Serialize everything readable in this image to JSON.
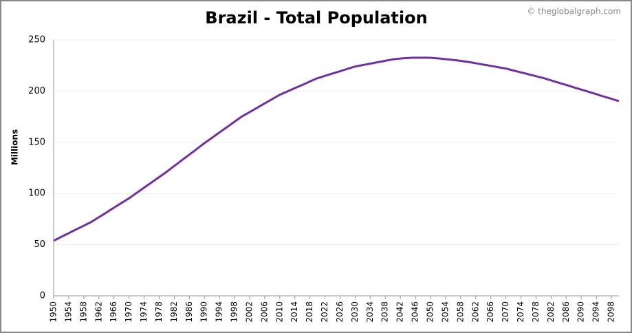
{
  "chart_data": {
    "type": "line",
    "title": "Brazil - Total Population",
    "credit": "© theglobalgraph.com",
    "y_label": "Millions",
    "x": [
      1950,
      1951,
      1952,
      1953,
      1954,
      1955,
      1956,
      1957,
      1958,
      1959,
      1960,
      1961,
      1962,
      1963,
      1964,
      1965,
      1966,
      1967,
      1968,
      1969,
      1970,
      1971,
      1972,
      1973,
      1974,
      1975,
      1976,
      1977,
      1978,
      1979,
      1980,
      1981,
      1982,
      1983,
      1984,
      1985,
      1986,
      1987,
      1988,
      1989,
      1990,
      1991,
      1992,
      1993,
      1994,
      1995,
      1996,
      1997,
      1998,
      1999,
      2000,
      2001,
      2002,
      2003,
      2004,
      2005,
      2006,
      2007,
      2008,
      2009,
      2010,
      2011,
      2012,
      2013,
      2014,
      2015,
      2016,
      2017,
      2018,
      2019,
      2020,
      2021,
      2022,
      2023,
      2024,
      2025,
      2026,
      2027,
      2028,
      2029,
      2030,
      2031,
      2032,
      2033,
      2034,
      2035,
      2036,
      2037,
      2038,
      2039,
      2040,
      2041,
      2042,
      2043,
      2044,
      2045,
      2046,
      2047,
      2048,
      2049,
      2050,
      2051,
      2052,
      2053,
      2054,
      2055,
      2056,
      2057,
      2058,
      2059,
      2060,
      2061,
      2062,
      2063,
      2064,
      2065,
      2066,
      2067,
      2068,
      2069,
      2070,
      2071,
      2072,
      2073,
      2074,
      2075,
      2076,
      2077,
      2078,
      2079,
      2080,
      2081,
      2082,
      2083,
      2084,
      2085,
      2086,
      2087,
      2088,
      2089,
      2090,
      2091,
      2092,
      2093,
      2094,
      2095,
      2096,
      2097,
      2098,
      2099,
      2100
    ],
    "series": [
      {
        "name": "Total Population",
        "color": "#7030a0",
        "values": [
          53.9,
          55.7,
          57.6,
          59.4,
          61.2,
          63.1,
          64.9,
          66.7,
          68.5,
          70.4,
          72.2,
          74.5,
          76.8,
          79.1,
          81.4,
          83.8,
          86.1,
          88.4,
          90.7,
          93.0,
          95.3,
          97.9,
          100.5,
          103.1,
          105.7,
          108.3,
          110.8,
          113.4,
          116.0,
          118.6,
          121.2,
          124.0,
          126.8,
          129.6,
          132.4,
          135.2,
          137.9,
          140.7,
          143.5,
          146.3,
          149.1,
          151.7,
          154.3,
          157.0,
          159.6,
          162.2,
          164.8,
          167.4,
          170.1,
          172.7,
          175.3,
          177.4,
          179.5,
          181.6,
          183.7,
          185.9,
          188.0,
          190.1,
          192.2,
          194.3,
          196.4,
          198.0,
          199.6,
          201.3,
          202.9,
          204.5,
          206.1,
          207.7,
          209.4,
          211.0,
          212.6,
          213.7,
          214.9,
          216.0,
          217.2,
          218.3,
          219.4,
          220.6,
          221.7,
          222.9,
          224.0,
          224.7,
          225.4,
          226.1,
          226.8,
          227.5,
          228.2,
          228.9,
          229.6,
          230.3,
          231.0,
          231.4,
          231.8,
          232.1,
          232.3,
          232.5,
          232.6,
          232.6,
          232.6,
          232.6,
          232.5,
          232.2,
          231.9,
          231.6,
          231.2,
          230.8,
          230.4,
          230.0,
          229.5,
          229.0,
          228.5,
          227.9,
          227.2,
          226.6,
          225.9,
          225.3,
          224.6,
          224.0,
          223.3,
          222.7,
          222.0,
          221.1,
          220.1,
          219.2,
          218.3,
          217.4,
          216.4,
          215.5,
          214.6,
          213.6,
          212.7,
          211.6,
          210.5,
          209.3,
          208.2,
          207.1,
          206.0,
          204.9,
          203.7,
          202.6,
          201.5,
          200.4,
          199.2,
          198.1,
          197.0,
          195.8,
          194.7,
          193.6,
          192.5,
          191.3,
          190.2
        ]
      }
    ],
    "xlim": [
      1950,
      2100
    ],
    "xticks": [
      1950,
      1954,
      1958,
      1962,
      1966,
      1970,
      1974,
      1978,
      1982,
      1986,
      1990,
      1994,
      1998,
      2002,
      2006,
      2010,
      2014,
      2018,
      2022,
      2026,
      2030,
      2034,
      2038,
      2042,
      2046,
      2050,
      2054,
      2058,
      2062,
      2066,
      2070,
      2074,
      2078,
      2082,
      2086,
      2090,
      2094,
      2098
    ],
    "ylim": [
      0,
      250
    ],
    "yticks": [
      0,
      50,
      100,
      150,
      200,
      250
    ],
    "grid": true
  }
}
